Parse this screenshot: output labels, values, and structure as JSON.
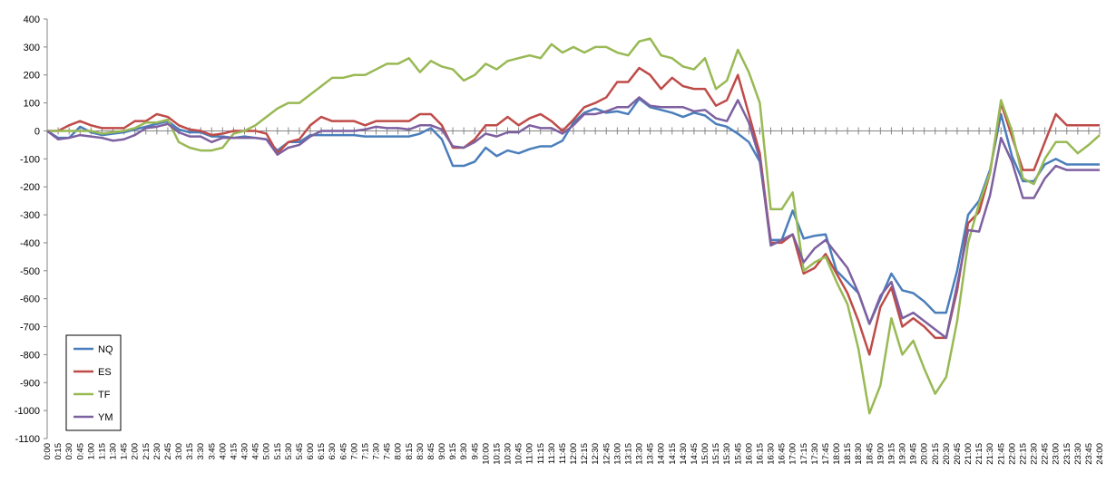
{
  "chart_data": {
    "type": "line",
    "categories": [
      "0:00",
      "0:15",
      "0:30",
      "0:45",
      "1:00",
      "1:15",
      "1:30",
      "1:45",
      "2:00",
      "2:15",
      "2:30",
      "2:45",
      "3:00",
      "3:15",
      "3:30",
      "3:45",
      "4:00",
      "4:15",
      "4:30",
      "4:45",
      "5:00",
      "5:15",
      "5:30",
      "5:45",
      "6:00",
      "6:15",
      "6:30",
      "6:45",
      "7:00",
      "7:15",
      "7:30",
      "7:45",
      "8:00",
      "8:15",
      "8:30",
      "8:45",
      "9:00",
      "9:15",
      "9:30",
      "9:45",
      "10:00",
      "10:15",
      "10:30",
      "10:45",
      "11:00",
      "11:15",
      "11:30",
      "11:45",
      "12:00",
      "12:15",
      "12:30",
      "12:45",
      "13:00",
      "13:15",
      "13:30",
      "13:45",
      "14:00",
      "14:15",
      "14:30",
      "14:45",
      "15:00",
      "15:15",
      "15:30",
      "15:45",
      "16:00",
      "16:15",
      "16:30",
      "16:45",
      "17:00",
      "17:15",
      "17:30",
      "17:45",
      "18:00",
      "18:15",
      "18:30",
      "18:45",
      "19:00",
      "19:15",
      "19:30",
      "19:45",
      "20:00",
      "20:15",
      "20:30",
      "20:45",
      "21:00",
      "21:15",
      "21:30",
      "21:45",
      "22:00",
      "22:15",
      "22:30",
      "22:45",
      "23:00",
      "23:15",
      "23:30",
      "23:45",
      "24:00"
    ],
    "series": [
      {
        "name": "NQ",
        "color": "#4a7ebb",
        "values": [
          0,
          -25,
          -25,
          15,
          -5,
          -15,
          -10,
          -5,
          5,
          15,
          25,
          35,
          5,
          -5,
          -5,
          -20,
          -20,
          -25,
          -20,
          -25,
          -30,
          -70,
          -40,
          -40,
          -15,
          -15,
          -15,
          -15,
          -15,
          -20,
          -20,
          -20,
          -20,
          -20,
          -10,
          10,
          -30,
          -125,
          -125,
          -110,
          -60,
          -90,
          -70,
          -80,
          -65,
          -55,
          -55,
          -35,
          30,
          65,
          80,
          65,
          70,
          60,
          115,
          85,
          75,
          65,
          50,
          65,
          55,
          25,
          15,
          -10,
          -40,
          -110,
          -390,
          -390,
          -285,
          -385,
          -375,
          -370,
          -500,
          -540,
          -580,
          -690,
          -600,
          -510,
          -570,
          -580,
          -610,
          -650,
          -650,
          -500,
          -300,
          -250,
          -140,
          60,
          -90,
          -180,
          -180,
          -120,
          -100,
          -120,
          -120,
          -120,
          -120
        ]
      },
      {
        "name": "ES",
        "color": "#be4b48",
        "values": [
          0,
          0,
          20,
          35,
          20,
          10,
          10,
          10,
          35,
          35,
          60,
          50,
          20,
          5,
          0,
          -15,
          -10,
          0,
          0,
          0,
          -10,
          -80,
          -40,
          -30,
          20,
          50,
          35,
          35,
          35,
          20,
          35,
          35,
          35,
          35,
          60,
          60,
          20,
          -60,
          -60,
          -30,
          20,
          20,
          50,
          20,
          45,
          60,
          35,
          0,
          40,
          85,
          100,
          120,
          175,
          175,
          225,
          200,
          150,
          190,
          160,
          150,
          150,
          90,
          110,
          200,
          60,
          -80,
          -400,
          -400,
          -370,
          -510,
          -490,
          -440,
          -510,
          -580,
          -680,
          -800,
          -630,
          -560,
          -700,
          -670,
          -700,
          -740,
          -740,
          -570,
          -330,
          -290,
          -150,
          100,
          -20,
          -140,
          -140,
          -40,
          60,
          20,
          20,
          20,
          20
        ]
      },
      {
        "name": "TF",
        "color": "#98b954",
        "values": [
          0,
          0,
          0,
          0,
          0,
          -10,
          -5,
          0,
          10,
          30,
          30,
          40,
          -40,
          -60,
          -70,
          -70,
          -60,
          -10,
          0,
          20,
          50,
          80,
          100,
          100,
          130,
          160,
          190,
          190,
          200,
          200,
          220,
          240,
          240,
          260,
          210,
          250,
          230,
          220,
          180,
          200,
          240,
          220,
          250,
          260,
          270,
          260,
          310,
          280,
          300,
          280,
          300,
          300,
          280,
          270,
          320,
          330,
          270,
          260,
          230,
          220,
          260,
          150,
          180,
          290,
          210,
          100,
          -280,
          -280,
          -220,
          -500,
          -470,
          -450,
          -540,
          -620,
          -780,
          -1010,
          -910,
          -670,
          -800,
          -750,
          -850,
          -940,
          -880,
          -680,
          -400,
          -260,
          -150,
          110,
          0,
          -170,
          -190,
          -100,
          -40,
          -40,
          -80,
          -50,
          -15
        ]
      },
      {
        "name": "YM",
        "color": "#7d60a0",
        "values": [
          0,
          -30,
          -25,
          -15,
          -20,
          -25,
          -35,
          -30,
          -15,
          10,
          15,
          25,
          -5,
          -20,
          -20,
          -40,
          -25,
          -25,
          -25,
          -25,
          -30,
          -85,
          -60,
          -50,
          -20,
          0,
          0,
          0,
          0,
          5,
          15,
          10,
          10,
          5,
          20,
          20,
          5,
          -55,
          -60,
          -40,
          -10,
          -20,
          -5,
          -5,
          20,
          10,
          10,
          -10,
          20,
          60,
          60,
          70,
          85,
          85,
          120,
          90,
          85,
          85,
          85,
          70,
          75,
          45,
          35,
          110,
          30,
          -100,
          -410,
          -390,
          -370,
          -470,
          -420,
          -390,
          -440,
          -490,
          -580,
          -690,
          -590,
          -540,
          -670,
          -650,
          -680,
          -710,
          -740,
          -550,
          -355,
          -360,
          -230,
          -25,
          -110,
          -240,
          -240,
          -170,
          -125,
          -140,
          -140,
          -140,
          -140
        ]
      }
    ],
    "ylim": [
      -1100,
      400
    ],
    "yticks": [
      -1100,
      -1000,
      -900,
      -800,
      -700,
      -600,
      -500,
      -400,
      -300,
      -200,
      -100,
      0,
      100,
      200,
      300,
      400
    ],
    "grid": false,
    "legend": "bottom-left"
  }
}
